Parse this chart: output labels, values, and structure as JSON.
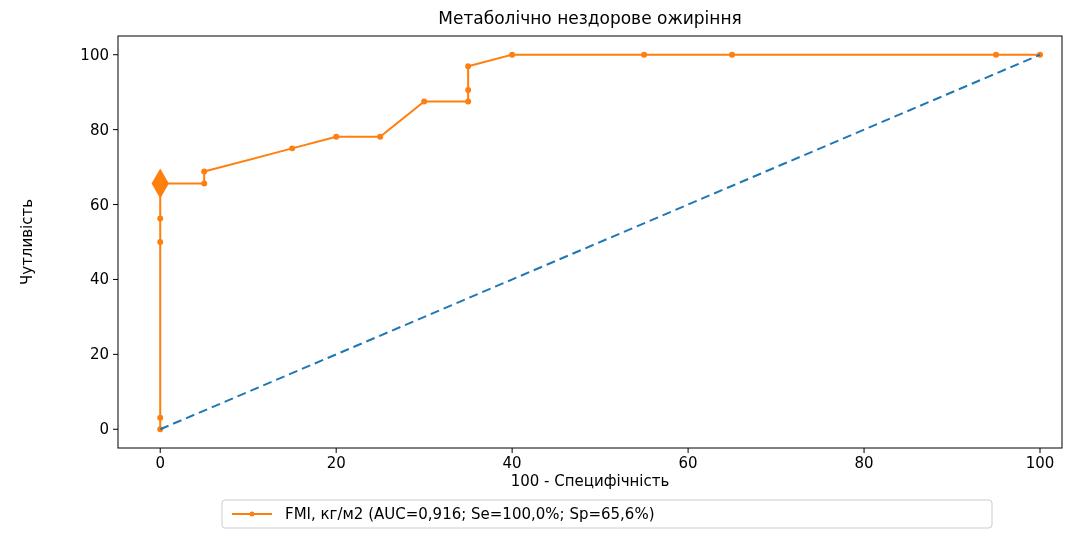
{
  "chart_data": {
    "type": "line",
    "title": "Метаболічно нездорове ожиріння",
    "xlabel": "100 - Специфічність",
    "ylabel": "Чутливість",
    "xlim": [
      -4.8,
      102.5
    ],
    "ylim": [
      -5,
      105
    ],
    "xticks": [
      0,
      20,
      40,
      60,
      80,
      100
    ],
    "yticks": [
      0,
      20,
      40,
      60,
      80,
      100
    ],
    "grid": false,
    "legend": "bottom",
    "series": [
      {
        "name": "FMI, кг/м2 (AUC=0,916; Se=100,0%; Sp=65,6%)",
        "color": "#ff7f0e",
        "marker": "circle",
        "line_style": "solid",
        "x": [
          0,
          0,
          0,
          0,
          0,
          5,
          5,
          15,
          20,
          25,
          30,
          35,
          35,
          35,
          40,
          55,
          65,
          95,
          100
        ],
        "values": [
          0,
          3.1,
          50,
          56.3,
          65.6,
          65.6,
          68.8,
          75,
          78.1,
          78.1,
          87.5,
          87.5,
          90.6,
          96.9,
          100,
          100,
          100,
          100,
          100
        ]
      },
      {
        "type": "scatter",
        "color": "#ff7f0e",
        "marker": "diamond",
        "x": [
          0
        ],
        "values": [
          65.6
        ]
      },
      {
        "color": "#1f77b4",
        "line_style": "dashed",
        "marker": "none",
        "x": [
          0,
          100
        ],
        "values": [
          0,
          100
        ]
      }
    ]
  }
}
